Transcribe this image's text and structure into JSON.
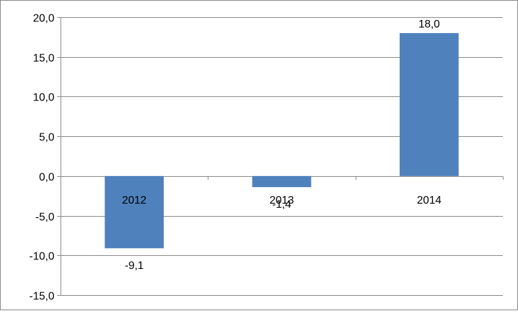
{
  "chart_data": {
    "type": "bar",
    "categories": [
      "2012",
      "2013",
      "2014"
    ],
    "values": [
      -9.1,
      -1.4,
      18.0
    ],
    "value_labels": [
      "-9,1",
      "-1,4",
      "18,0"
    ],
    "title": "",
    "xlabel": "",
    "ylabel": "",
    "ylim": [
      -15,
      20
    ],
    "y_ticks": [
      20,
      15,
      10,
      5,
      0,
      -5,
      -10,
      -15
    ],
    "y_tick_labels": [
      "20,0",
      "15,0",
      "10,0",
      "5,0",
      "0,0",
      "-5,0",
      "-10,0",
      "-15,0"
    ],
    "grid": true,
    "legend": "none",
    "bar_color": "#4F81BD",
    "grid_color": "#868686"
  }
}
